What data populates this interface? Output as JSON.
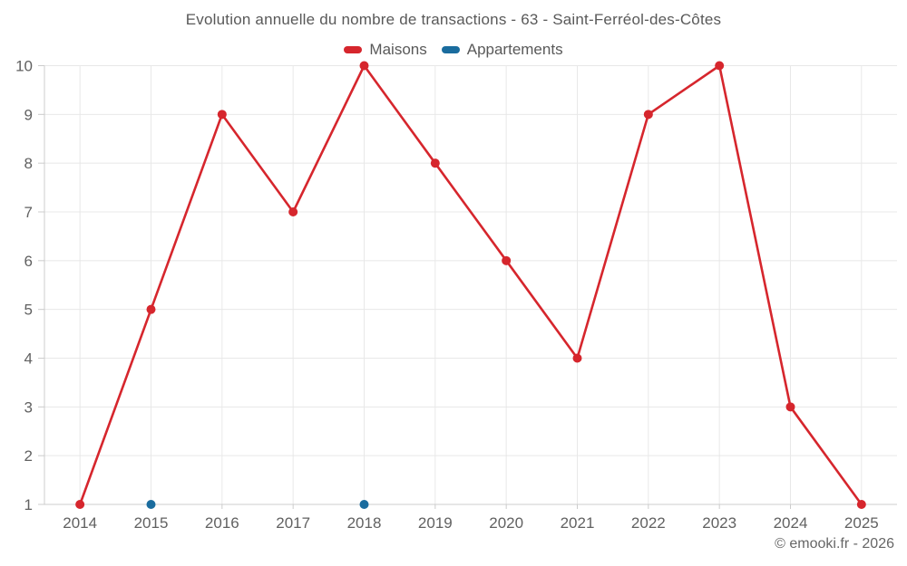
{
  "title": "Evolution annuelle du nombre de transactions - 63 - Saint-Ferréol-des-Côtes",
  "legend": [
    {
      "label": "Maisons",
      "color": "#d6262d"
    },
    {
      "label": "Appartements",
      "color": "#1a6c9e"
    }
  ],
  "footer": {
    "credit": "© emooki.fr - 2026"
  },
  "chart_data": {
    "type": "line",
    "title": "Evolution annuelle du nombre de transactions - 63 - Saint-Ferréol-des-Côtes",
    "x": [
      "2014",
      "2015",
      "2016",
      "2017",
      "2018",
      "2019",
      "2020",
      "2021",
      "2022",
      "2023",
      "2024",
      "2025"
    ],
    "series": [
      {
        "name": "Maisons",
        "color": "#d6262d",
        "values": [
          1,
          5,
          9,
          7,
          10,
          8,
          6,
          4,
          9,
          10,
          3,
          1
        ]
      },
      {
        "name": "Appartements",
        "color": "#1a6c9e",
        "values": [
          null,
          1,
          null,
          null,
          1,
          null,
          null,
          null,
          null,
          null,
          null,
          null
        ]
      }
    ],
    "xlabel": "",
    "ylabel": "",
    "ylim": [
      1,
      10
    ],
    "yticks": [
      1,
      2,
      3,
      4,
      5,
      6,
      7,
      8,
      9,
      10
    ],
    "grid": true,
    "legend_position": "top",
    "marker_radius": 5
  }
}
